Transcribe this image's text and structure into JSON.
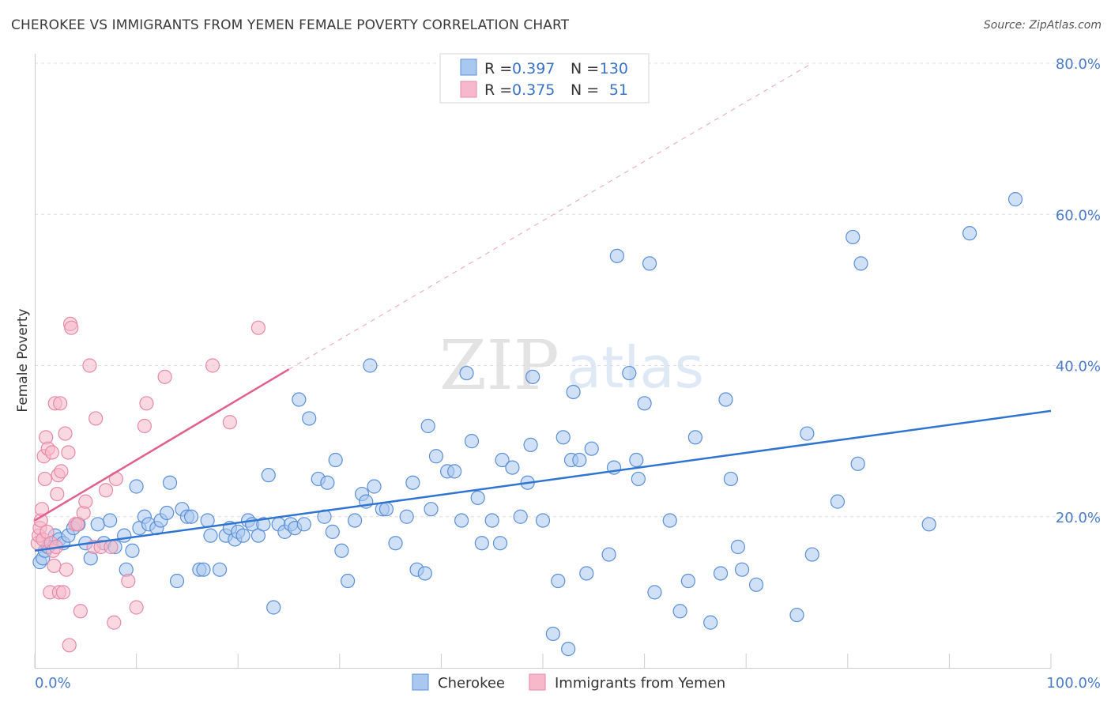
{
  "title": "CHEROKEE VS IMMIGRANTS FROM YEMEN FEMALE POVERTY CORRELATION CHART",
  "source": "Source: ZipAtlas.com",
  "watermark": {
    "zip": "ZIP",
    "atlas": "atlas"
  },
  "colors": {
    "cherokee_fill": "#a9c8f0",
    "cherokee_stroke": "#5b8fd6",
    "cherokee_line": "#2f74d0",
    "yemen_fill": "#f6b8ca",
    "yemen_stroke": "#e58aa7",
    "yemen_line": "#e0608d",
    "tick_text": "#4a7cc7",
    "grid": "#dddddd"
  },
  "legend": {
    "rows": [
      {
        "r_label": "R = ",
        "r_value": "0.397",
        "n_label": "N = ",
        "n_value": "130"
      },
      {
        "r_label": "R = ",
        "r_value": "0.375",
        "n_label": "N = ",
        "n_value": "51"
      }
    ]
  },
  "chart_data": {
    "type": "scatter",
    "title": "CHEROKEE VS IMMIGRANTS FROM YEMEN FEMALE POVERTY CORRELATION CHART",
    "xlabel": "",
    "ylabel": "Female Poverty",
    "xlim": [
      0,
      100
    ],
    "ylim": [
      0,
      80
    ],
    "x_tick_labels": [
      "0.0%",
      "100.0%"
    ],
    "y_ticks": [
      20,
      40,
      60,
      80
    ],
    "y_tick_labels": [
      "20.0%",
      "40.0%",
      "60.0%",
      "80.0%"
    ],
    "grid": true,
    "legend_position": "top-center",
    "series": [
      {
        "name": "Cherokee",
        "r": 0.397,
        "n": 130,
        "trend": {
          "x0": 0,
          "y0": 15.5,
          "x1": 100,
          "y1": 34.0
        },
        "points": [
          [
            0.5,
            14
          ],
          [
            0.8,
            14.5
          ],
          [
            1.0,
            15.5
          ],
          [
            1.3,
            16
          ],
          [
            1.6,
            16.5
          ],
          [
            2.0,
            17.5
          ],
          [
            2.4,
            17
          ],
          [
            2.8,
            16.5
          ],
          [
            3.3,
            17.5
          ],
          [
            3.8,
            18.5
          ],
          [
            4.3,
            19
          ],
          [
            5.0,
            16.5
          ],
          [
            5.5,
            14.5
          ],
          [
            6.2,
            19
          ],
          [
            6.8,
            16.5
          ],
          [
            7.4,
            19.5
          ],
          [
            7.9,
            16
          ],
          [
            8.8,
            17.5
          ],
          [
            9.0,
            13
          ],
          [
            9.6,
            15.5
          ],
          [
            10.0,
            24
          ],
          [
            10.3,
            18.5
          ],
          [
            10.8,
            20
          ],
          [
            11.2,
            19
          ],
          [
            12.0,
            18.5
          ],
          [
            12.4,
            19.5
          ],
          [
            13.0,
            20.5
          ],
          [
            13.3,
            24.5
          ],
          [
            14.0,
            11.5
          ],
          [
            14.5,
            21
          ],
          [
            15.0,
            20
          ],
          [
            15.4,
            20
          ],
          [
            16.2,
            13
          ],
          [
            16.6,
            13
          ],
          [
            17.0,
            19.5
          ],
          [
            17.3,
            17.5
          ],
          [
            18.2,
            13
          ],
          [
            18.8,
            17.5
          ],
          [
            19.2,
            18.5
          ],
          [
            19.7,
            17
          ],
          [
            20.0,
            18
          ],
          [
            20.5,
            17.5
          ],
          [
            21.0,
            19.5
          ],
          [
            21.4,
            19
          ],
          [
            22.0,
            17.5
          ],
          [
            22.5,
            19
          ],
          [
            23.0,
            25.5
          ],
          [
            23.5,
            8
          ],
          [
            24.0,
            19
          ],
          [
            24.6,
            18
          ],
          [
            25.2,
            19
          ],
          [
            25.6,
            18.5
          ],
          [
            26.0,
            35.5
          ],
          [
            26.5,
            19
          ],
          [
            27.0,
            33
          ],
          [
            27.9,
            25
          ],
          [
            28.5,
            20
          ],
          [
            28.8,
            24.5
          ],
          [
            29.3,
            18
          ],
          [
            29.6,
            27.5
          ],
          [
            30.2,
            15.5
          ],
          [
            30.8,
            11.5
          ],
          [
            31.5,
            19.5
          ],
          [
            32.2,
            23
          ],
          [
            32.6,
            22
          ],
          [
            33.0,
            40
          ],
          [
            33.4,
            24
          ],
          [
            34.2,
            21
          ],
          [
            34.6,
            21
          ],
          [
            35.5,
            16.5
          ],
          [
            36.6,
            20
          ],
          [
            37.2,
            24.5
          ],
          [
            37.6,
            13
          ],
          [
            38.4,
            12.5
          ],
          [
            38.7,
            32
          ],
          [
            39.0,
            21
          ],
          [
            39.5,
            28
          ],
          [
            40.6,
            26
          ],
          [
            41.3,
            26
          ],
          [
            42.0,
            19.5
          ],
          [
            42.5,
            39
          ],
          [
            43.0,
            30
          ],
          [
            43.6,
            22.5
          ],
          [
            44.0,
            16.5
          ],
          [
            45.0,
            19.5
          ],
          [
            45.8,
            16.5
          ],
          [
            46.0,
            27.5
          ],
          [
            47.0,
            26.5
          ],
          [
            47.8,
            20
          ],
          [
            48.5,
            24.5
          ],
          [
            48.8,
            29.5
          ],
          [
            49.0,
            38.5
          ],
          [
            50.0,
            19.5
          ],
          [
            51.0,
            4.5
          ],
          [
            51.5,
            11.5
          ],
          [
            52.0,
            30.5
          ],
          [
            52.5,
            2.5
          ],
          [
            52.8,
            27.5
          ],
          [
            53.0,
            36.5
          ],
          [
            53.6,
            27.5
          ],
          [
            54.3,
            12.5
          ],
          [
            54.8,
            29
          ],
          [
            56.5,
            15
          ],
          [
            57.0,
            26.5
          ],
          [
            57.3,
            54.5
          ],
          [
            58.5,
            39
          ],
          [
            59.2,
            27.5
          ],
          [
            59.4,
            25
          ],
          [
            60.0,
            35
          ],
          [
            60.5,
            53.5
          ],
          [
            61.0,
            10
          ],
          [
            62.5,
            19.5
          ],
          [
            63.5,
            7.5
          ],
          [
            64.3,
            11.5
          ],
          [
            65.0,
            30.5
          ],
          [
            66.5,
            6
          ],
          [
            67.5,
            12.5
          ],
          [
            68.0,
            35.5
          ],
          [
            68.5,
            25
          ],
          [
            69.2,
            16
          ],
          [
            69.6,
            13
          ],
          [
            71.0,
            11
          ],
          [
            75.0,
            7
          ],
          [
            76.0,
            31
          ],
          [
            76.5,
            15
          ],
          [
            79.0,
            22
          ],
          [
            80.5,
            57
          ],
          [
            81.0,
            27
          ],
          [
            81.3,
            53.5
          ],
          [
            88.0,
            19
          ],
          [
            92.0,
            57.5
          ],
          [
            96.5,
            62
          ]
        ]
      },
      {
        "name": "Immigrants from Yemen",
        "r": 0.375,
        "n": 51,
        "trend": {
          "x0": 0,
          "y0": 19.5,
          "x1": 25,
          "y1": 39.5
        },
        "trend_extension": {
          "x0": 25,
          "y0": 39.5,
          "x1": 76.5,
          "y1": 80
        },
        "points": [
          [
            0.3,
            16.5
          ],
          [
            0.4,
            17.5
          ],
          [
            0.5,
            18.5
          ],
          [
            0.6,
            19.5
          ],
          [
            0.8,
            17
          ],
          [
            0.9,
            28
          ],
          [
            1.0,
            25
          ],
          [
            1.1,
            30.5
          ],
          [
            1.2,
            18
          ],
          [
            1.3,
            29
          ],
          [
            1.5,
            10
          ],
          [
            1.6,
            16.5
          ],
          [
            1.7,
            28.5
          ],
          [
            1.8,
            15.5
          ],
          [
            2.0,
            35
          ],
          [
            2.2,
            23
          ],
          [
            2.3,
            25.5
          ],
          [
            2.4,
            10
          ],
          [
            2.5,
            35
          ],
          [
            2.6,
            26
          ],
          [
            2.8,
            10
          ],
          [
            3.0,
            31
          ],
          [
            3.1,
            13
          ],
          [
            3.3,
            28.5
          ],
          [
            3.4,
            3
          ],
          [
            3.5,
            45.5
          ],
          [
            3.6,
            45
          ],
          [
            4.0,
            19
          ],
          [
            4.2,
            19
          ],
          [
            4.5,
            7.5
          ],
          [
            4.8,
            20.5
          ],
          [
            5.0,
            22
          ],
          [
            5.4,
            40
          ],
          [
            5.8,
            16
          ],
          [
            6.0,
            33
          ],
          [
            6.5,
            16
          ],
          [
            7.0,
            23.5
          ],
          [
            7.5,
            16
          ],
          [
            7.8,
            6
          ],
          [
            8.0,
            25
          ],
          [
            9.2,
            11.5
          ],
          [
            10.0,
            8
          ],
          [
            10.8,
            32
          ],
          [
            11.0,
            35
          ],
          [
            12.8,
            38.5
          ],
          [
            17.5,
            40
          ],
          [
            19.2,
            32.5
          ],
          [
            22.0,
            45
          ],
          [
            0.7,
            21
          ],
          [
            1.9,
            13.5
          ],
          [
            2.1,
            16
          ]
        ]
      }
    ]
  },
  "bottom_legend": {
    "items": [
      "Cherokee",
      "Immigrants from Yemen"
    ]
  }
}
